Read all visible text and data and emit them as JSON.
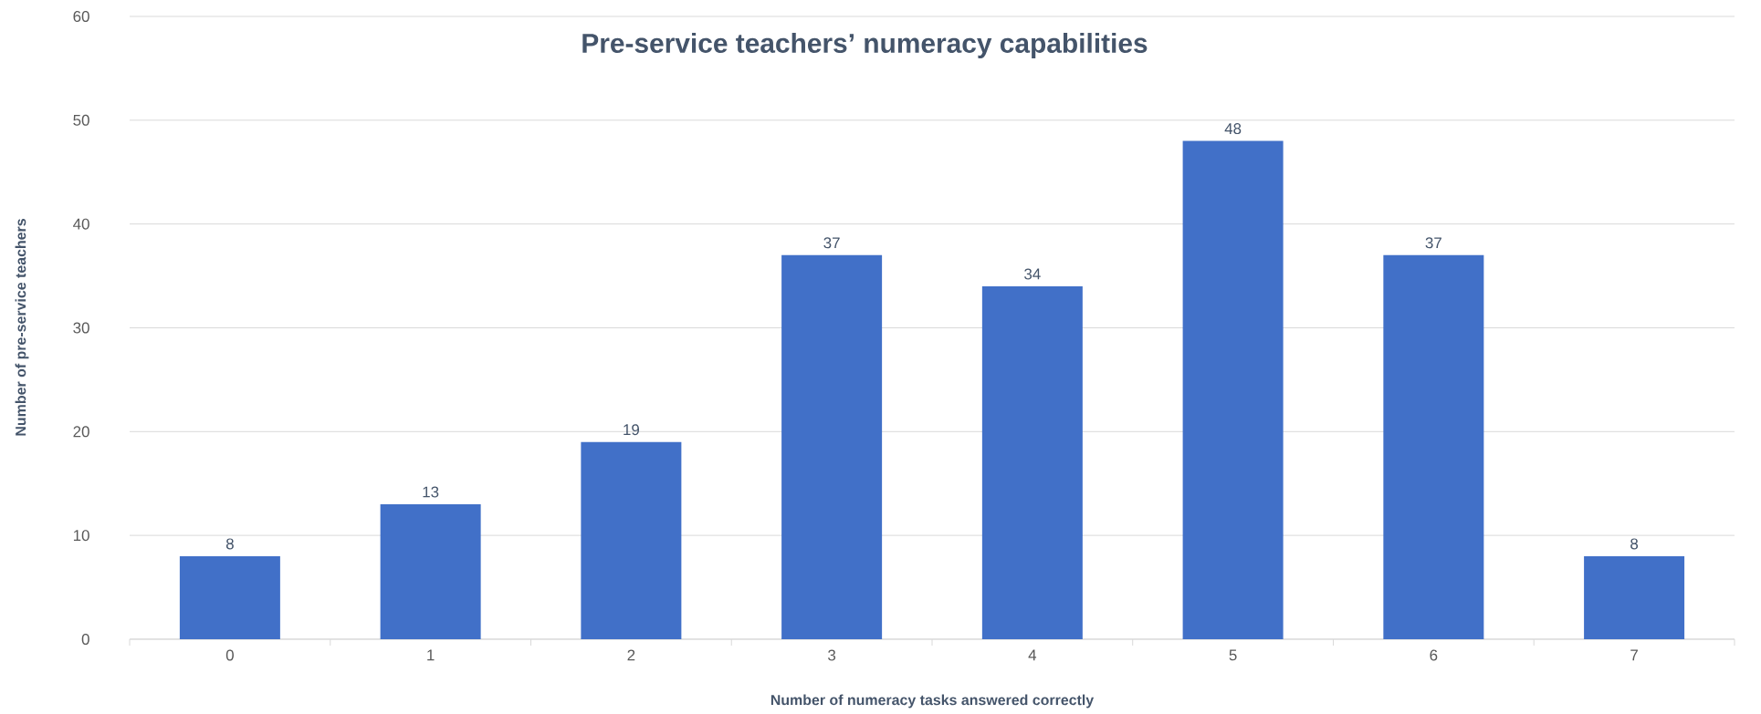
{
  "chart_data": {
    "type": "bar",
    "title": "Pre-service teachers’ numeracy capabilities",
    "xlabel": "Number of numeracy tasks answered correctly",
    "ylabel": "Number of pre-service teachers",
    "categories": [
      "0",
      "1",
      "2",
      "3",
      "4",
      "5",
      "6",
      "7"
    ],
    "values": [
      8,
      13,
      19,
      37,
      34,
      48,
      37,
      8
    ],
    "color": "#4170c8",
    "ylim": [
      0,
      60
    ],
    "yticks": [
      0,
      10,
      20,
      30,
      40,
      50,
      60
    ],
    "grid": "y",
    "data_labels": true
  }
}
